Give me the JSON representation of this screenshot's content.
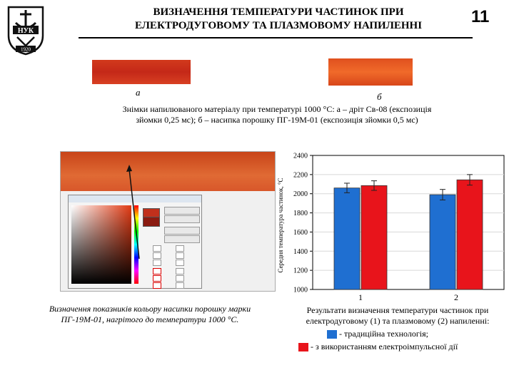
{
  "slide": {
    "title_line1": "ВИЗНАЧЕННЯ ТЕМПЕРАТУРИ ЧАСТИНОК ПРИ",
    "title_line2": "ЕЛЕКТРОДУГОВОМУ ТА ПЛАЗМОВОМУ НАПИЛЕННІ",
    "number": "11"
  },
  "logo": {
    "text_top": "НУК",
    "text_year": "1920"
  },
  "photos": {
    "label_a": "а",
    "label_b": "б",
    "caption_line1": "Знімки напилюваного матеріалу при температурі 1000 °С: а – дріт Св-08 (експозиція",
    "caption_line2": "зйомки 0,25 мс); б – насипка порошку ПГ-19М-01 (експозиція зйомки 0,5 мс)"
  },
  "screenshot_caption": {
    "line1": "Визначення показників кольору насипки порошку марки",
    "line2": "ПГ-19М-01, нагрітого до температури 1000 °С."
  },
  "chart_data": {
    "type": "bar",
    "ylabel": "Середня температура частинок, °С",
    "ylim": [
      1000,
      2400
    ],
    "yticks": [
      1000,
      1200,
      1400,
      1600,
      1800,
      2000,
      2200,
      2400
    ],
    "categories": [
      "1",
      "2"
    ],
    "series": [
      {
        "color": "#1f6fd1",
        "values": [
          2060,
          1990
        ],
        "errors": [
          50,
          55
        ]
      },
      {
        "color": "#e8141b",
        "values": [
          2085,
          2145
        ],
        "errors": [
          50,
          55
        ]
      }
    ]
  },
  "chart_caption": {
    "line1": "Результати визначення температури частинок при",
    "line2": "електродуговому (1) та плазмовому (2) напиленні:",
    "legend1": "-     традиційна технологія;",
    "legend2": "- з використанням електроімпульсної дії"
  },
  "colors": {
    "legend1": "#1f6fd1",
    "legend2": "#e8141b"
  }
}
